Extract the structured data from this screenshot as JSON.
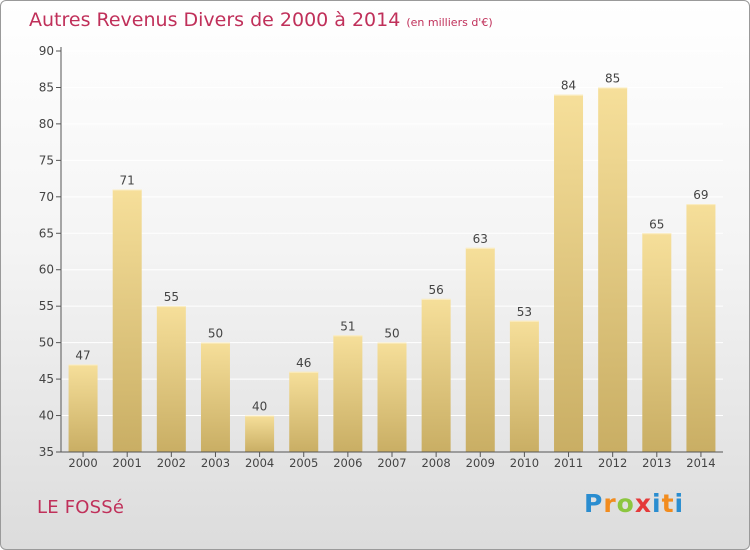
{
  "header": {
    "title": "Autres Revenus Divers de 2000 à 2014",
    "unit": "(en milliers d'€)"
  },
  "footer": {
    "commune": "LE FOSSé",
    "logo": "Proxiti"
  },
  "colors": {
    "title": "#c0305a",
    "bar_top": "#f6df9a",
    "bar_bottom": "#c9ae64",
    "axis": "#555555",
    "grid": "#ffffff"
  },
  "chart_data": {
    "type": "bar",
    "title": "Autres Revenus Divers de 2000 à 2014",
    "subtitle": "(en milliers d'€)",
    "xlabel": "",
    "ylabel": "",
    "ylim": [
      35,
      90
    ],
    "yticks": [
      35,
      40,
      45,
      50,
      55,
      60,
      65,
      70,
      75,
      80,
      85,
      90
    ],
    "grid": true,
    "categories": [
      "2000",
      "2001",
      "2002",
      "2003",
      "2004",
      "2005",
      "2006",
      "2007",
      "2008",
      "2009",
      "2010",
      "2011",
      "2012",
      "2013",
      "2014"
    ],
    "values": [
      47,
      71,
      55,
      50,
      40,
      46,
      51,
      50,
      56,
      63,
      53,
      84,
      85,
      65,
      69
    ],
    "data_labels": true
  }
}
